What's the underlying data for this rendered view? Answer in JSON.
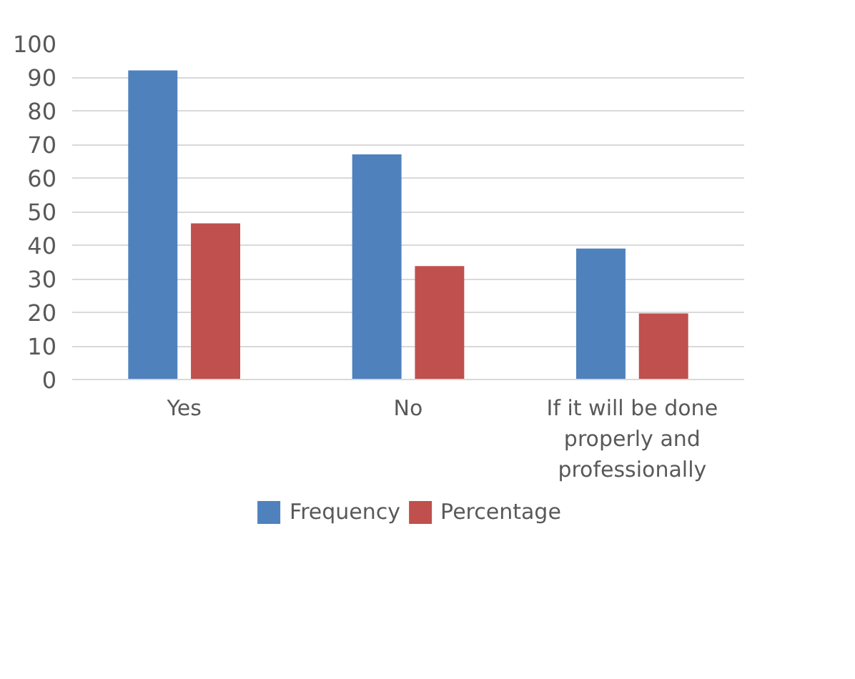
{
  "chart_data": {
    "type": "bar",
    "categories": [
      "Yes",
      "No",
      "If it will be done properly and professionally"
    ],
    "series": [
      {
        "name": "Frequency",
        "color": "#4f81bd",
        "values": [
          92,
          67,
          39
        ]
      },
      {
        "name": "Percentage",
        "color": "#c0504d",
        "values": [
          46.5,
          33.8,
          19.7
        ]
      }
    ],
    "ylim": [
      0,
      100
    ],
    "yticks": [
      0,
      10,
      20,
      30,
      40,
      50,
      60,
      70,
      80,
      90,
      100
    ],
    "grid": "y",
    "legend": "bottom"
  }
}
